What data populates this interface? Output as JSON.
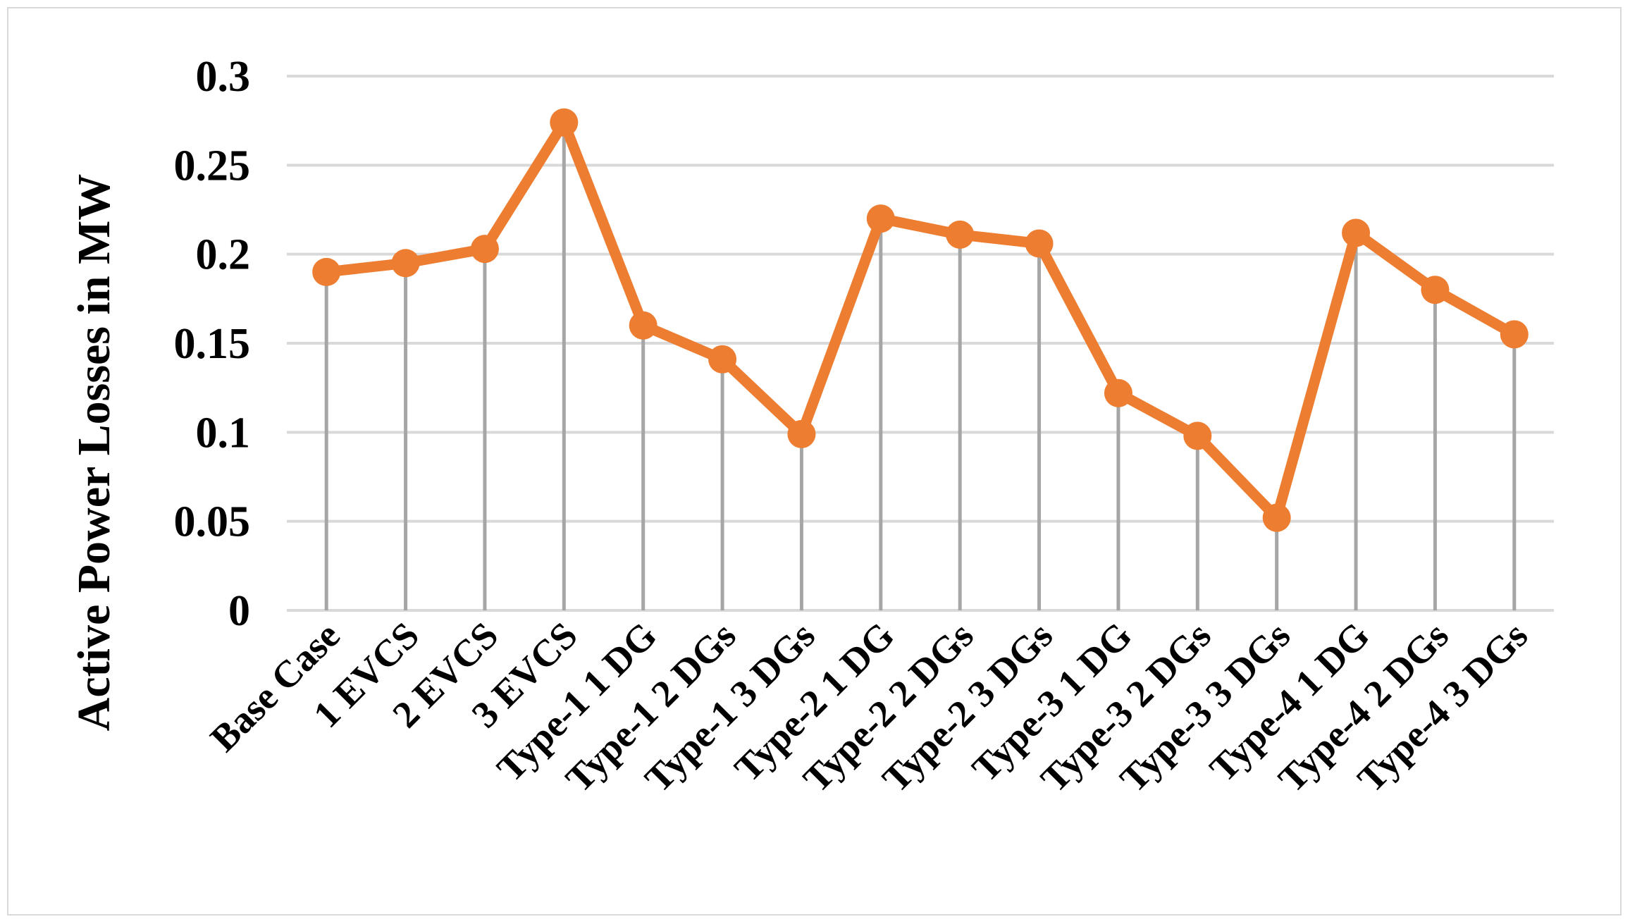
{
  "chart_data": {
    "type": "line",
    "title": "",
    "xlabel": "",
    "ylabel": "Active Power Losses in MW",
    "categories": [
      "Base Case",
      "1 EVCS",
      "2 EVCS",
      "3 EVCS",
      "Type-1 1 DG",
      "Type-1 2 DGs",
      "Type-1 3 DGs",
      "Type-2 1 DG",
      "Type-2 2 DGs",
      "Type-2 3 DGs",
      "Type-3 1 DG",
      "Type-3 2 DGs",
      "Type-3 3 DGs",
      "Type-4 1 DG",
      "Type-4 2 DGs",
      "Type-4 3 DGs"
    ],
    "series": [
      {
        "values": [
          0.19,
          0.195,
          0.203,
          0.274,
          0.16,
          0.141,
          0.099,
          0.22,
          0.211,
          0.206,
          0.122,
          0.098,
          0.052,
          0.212,
          0.18,
          0.155
        ]
      }
    ],
    "ylim": [
      0,
      0.3
    ],
    "yticks": [
      "0",
      "0.05",
      "0.1",
      "0.15",
      "0.2",
      "0.25",
      "0.3"
    ],
    "grid": true,
    "drop_lines": true,
    "legend": "none",
    "colors": {
      "line": "#ed7d31",
      "gridline": "#d9d9d9",
      "drop_line": "#a6a6a6"
    }
  }
}
